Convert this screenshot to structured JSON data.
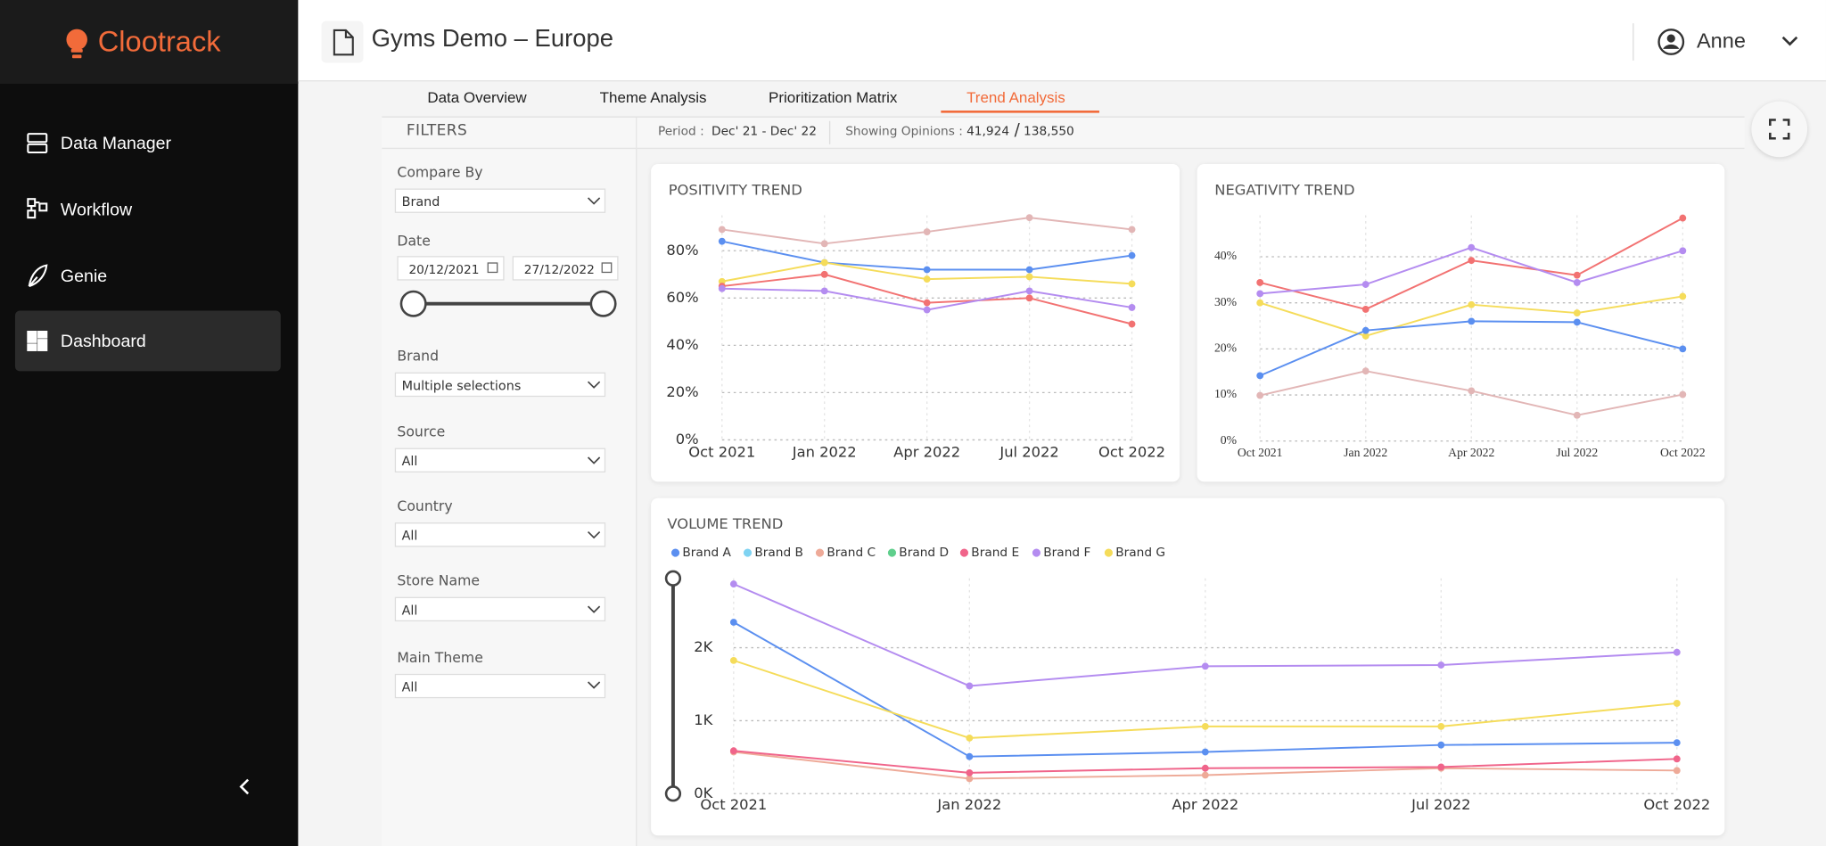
{
  "sidebar": {
    "logo": "Clootrack",
    "nav": [
      "Data Manager",
      "Workflow",
      "Genie",
      "Dashboard"
    ]
  },
  "header": {
    "title": "Gyms Demo – Europe",
    "user": "Anne"
  },
  "tabs": [
    "Data Overview",
    "Theme Analysis",
    "Prioritization Matrix",
    "Trend Analysis"
  ],
  "filters": {
    "title": "FILTERS",
    "fields": [
      {
        "label": "Compare By",
        "value": "Brand"
      },
      {
        "label": "Date",
        "start": "20/12/2021",
        "end": "27/12/2022"
      },
      {
        "label": "Brand",
        "value": "Multiple selections"
      },
      {
        "label": "Source",
        "value": "All"
      },
      {
        "label": "Country",
        "value": "All"
      },
      {
        "label": "Store Name",
        "value": "All"
      },
      {
        "label": "Main Theme",
        "value": "All"
      }
    ]
  },
  "summary": {
    "period_label": "Period :",
    "period": "Dec' 21 - Dec' 22",
    "opinions_label": "Showing Opinions :",
    "shown": "41,924",
    "separator": "/",
    "total": "138,550"
  },
  "chart_data": [
    {
      "type": "line",
      "title": "POSITIVITY TREND",
      "categories": [
        "Oct 2021",
        "Jan 2022",
        "Apr 2022",
        "Jul 2022",
        "Oct 2022"
      ],
      "ylim": [
        0,
        95
      ],
      "yticks": [
        {
          "value": 0,
          "label": "0%"
        },
        {
          "value": 20,
          "label": "20%"
        },
        {
          "value": 40,
          "label": "40%"
        },
        {
          "value": 60,
          "label": "60%"
        },
        {
          "value": 80,
          "label": "80%"
        }
      ],
      "grid": true,
      "series": [
        {
          "color": "#e2b6b6",
          "values": [
            89,
            83,
            88,
            94,
            89
          ]
        },
        {
          "color": "#5b8ff0",
          "values": [
            84,
            75,
            72,
            72,
            78
          ]
        },
        {
          "color": "#f5dc5a",
          "values": [
            67,
            75,
            68,
            69,
            66
          ]
        },
        {
          "color": "#f27272",
          "values": [
            65,
            70,
            58,
            60,
            49
          ]
        },
        {
          "color": "#b48cf0",
          "values": [
            64,
            63,
            55,
            63,
            56
          ]
        }
      ]
    },
    {
      "type": "line",
      "title": "NEGATIVITY TREND",
      "categories": [
        "Oct 2021",
        "Jan 2022",
        "Apr 2022",
        "Jul 2022",
        "Oct 2022"
      ],
      "ylim": [
        0,
        49
      ],
      "yticks": [
        {
          "value": 0,
          "label": "0%"
        },
        {
          "value": 10,
          "label": "10%"
        },
        {
          "value": 20,
          "label": "20%"
        },
        {
          "value": 30,
          "label": "30%"
        },
        {
          "value": 40,
          "label": "40%"
        }
      ],
      "grid": true,
      "series": [
        {
          "color": "#f27272",
          "values": [
            34.4,
            28.6,
            39.2,
            36,
            48.4
          ]
        },
        {
          "color": "#b48cf0",
          "values": [
            32,
            34,
            42,
            34.4,
            41.3
          ]
        },
        {
          "color": "#f5dc5a",
          "values": [
            30,
            22.8,
            29.6,
            27.8,
            31.4
          ]
        },
        {
          "color": "#5b8ff0",
          "values": [
            14.2,
            24,
            26,
            25.8,
            20
          ]
        },
        {
          "color": "#e2b6b6",
          "values": [
            9.9,
            15.2,
            10.9,
            5.6,
            10.1
          ]
        }
      ]
    },
    {
      "type": "line",
      "title": "VOLUME TREND",
      "categories": [
        "Oct 2021",
        "Jan 2022",
        "Apr 2022",
        "Jul 2022",
        "Oct 2022"
      ],
      "ylim": [
        0,
        2950
      ],
      "yticks": [
        {
          "value": 0,
          "label": "0K"
        },
        {
          "value": 1000,
          "label": "1K"
        },
        {
          "value": 2000,
          "label": "2K"
        }
      ],
      "grid": true,
      "series": [
        {
          "name": "Brand A",
          "color": "#5b8ff0",
          "values": [
            2349,
            508,
            571,
            667,
            698
          ]
        },
        {
          "name": "Brand B",
          "color": "#7fd3f2",
          "values": [
            null,
            null,
            null,
            null,
            null
          ]
        },
        {
          "name": "Brand C",
          "color": "#eeaa98",
          "values": [
            571,
            206,
            254,
            349,
            317
          ]
        },
        {
          "name": "Brand D",
          "color": "#5fcf8c",
          "values": [
            null,
            null,
            null,
            null,
            null
          ]
        },
        {
          "name": "Brand E",
          "color": "#f0648a",
          "values": [
            587,
            286,
            349,
            365,
            476
          ]
        },
        {
          "name": "Brand F",
          "color": "#b48cf0",
          "values": [
            2873,
            1476,
            1746,
            1762,
            1937
          ]
        },
        {
          "name": "Brand G",
          "color": "#f5dc5a",
          "values": [
            1825,
            762,
            921,
            921,
            1238
          ]
        }
      ]
    }
  ]
}
